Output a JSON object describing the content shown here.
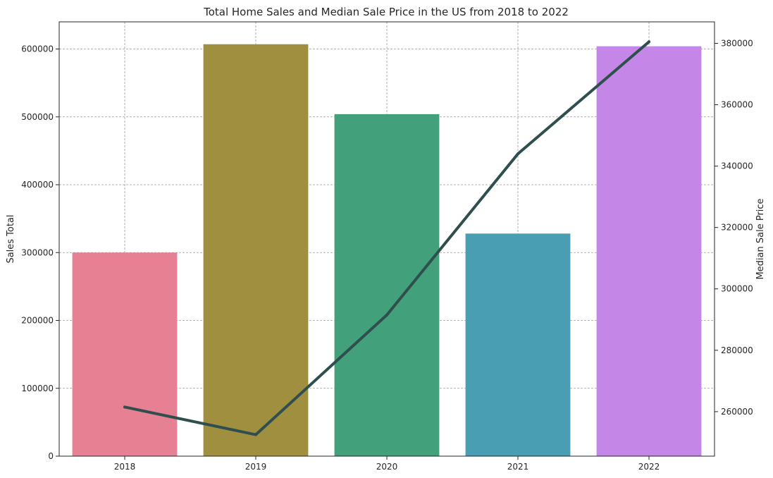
{
  "chart_data": {
    "type": "bar",
    "title": "Total Home Sales and Median Sale Price in the US from 2018 to 2022",
    "categories": [
      "2018",
      "2019",
      "2020",
      "2021",
      "2022"
    ],
    "xlabel": "",
    "ylabel": "Sales Total",
    "ylabel_right": "Median Sale Price",
    "ylim": [
      0,
      640000
    ],
    "ylim_right": [
      245500,
      387000
    ],
    "yticks": [
      0,
      100000,
      200000,
      300000,
      400000,
      500000,
      600000
    ],
    "yticks_right": [
      260000,
      280000,
      300000,
      320000,
      340000,
      360000,
      380000
    ],
    "grid": true,
    "series": [
      {
        "type": "bar",
        "axis": "left",
        "values": [
          300000,
          607000,
          504000,
          328000,
          604000
        ],
        "colors": [
          "#e68193",
          "#a08f3e",
          "#42a17a",
          "#499eb3",
          "#c587e7"
        ]
      },
      {
        "type": "line",
        "axis": "right",
        "values": [
          261500,
          252500,
          291500,
          344000,
          380500
        ],
        "color": "#2f4f4f"
      }
    ]
  }
}
